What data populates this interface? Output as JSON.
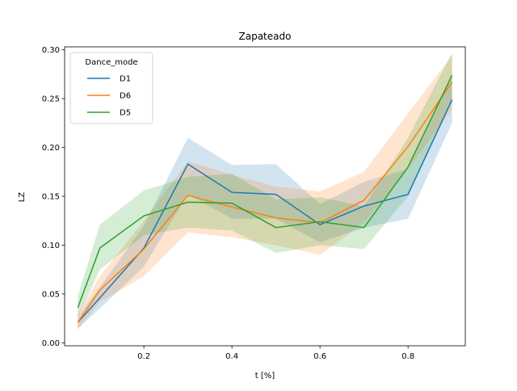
{
  "chart_data": {
    "type": "line",
    "title": "Zapateado",
    "xlabel": "t [%]",
    "ylabel": "LZ",
    "xlim": [
      0.02,
      0.93
    ],
    "ylim": [
      -0.003,
      0.303
    ],
    "x_ticks": [
      0.2,
      0.4,
      0.6,
      0.8
    ],
    "x_tick_labels": [
      "0.2",
      "0.4",
      "0.6",
      "0.8"
    ],
    "y_ticks": [
      0.0,
      0.05,
      0.1,
      0.15,
      0.2,
      0.25,
      0.3
    ],
    "y_tick_labels": [
      "0.00",
      "0.05",
      "0.10",
      "0.15",
      "0.20",
      "0.25",
      "0.30"
    ],
    "grid": false,
    "legend_title": "Dance_mode",
    "legend_position": "top-left",
    "x": [
      0.05,
      0.1,
      0.2,
      0.3,
      0.4,
      0.5,
      0.6,
      0.7,
      0.8,
      0.9
    ],
    "series": [
      {
        "name": "D1",
        "color": "#1f77b4",
        "values": [
          0.021,
          0.046,
          0.097,
          0.183,
          0.154,
          0.152,
          0.121,
          0.14,
          0.152,
          0.249
        ],
        "lower": [
          0.015,
          0.035,
          0.078,
          0.152,
          0.127,
          0.127,
          0.103,
          0.118,
          0.127,
          0.225
        ],
        "upper": [
          0.027,
          0.057,
          0.12,
          0.21,
          0.182,
          0.183,
          0.142,
          0.165,
          0.178,
          0.272
        ]
      },
      {
        "name": "D6",
        "color": "#ff7f0e",
        "values": [
          0.021,
          0.054,
          0.096,
          0.151,
          0.139,
          0.128,
          0.123,
          0.146,
          0.201,
          0.267
        ],
        "lower": [
          0.013,
          0.042,
          0.068,
          0.113,
          0.108,
          0.1,
          0.09,
          0.123,
          0.178,
          0.239
        ],
        "upper": [
          0.03,
          0.068,
          0.125,
          0.186,
          0.172,
          0.16,
          0.155,
          0.175,
          0.235,
          0.294
        ]
      },
      {
        "name": "D5",
        "color": "#2ca02c",
        "values": [
          0.036,
          0.097,
          0.13,
          0.144,
          0.143,
          0.118,
          0.124,
          0.118,
          0.18,
          0.274
        ],
        "lower": [
          0.026,
          0.075,
          0.11,
          0.118,
          0.115,
          0.092,
          0.1,
          0.096,
          0.15,
          0.25
        ],
        "upper": [
          0.048,
          0.121,
          0.156,
          0.17,
          0.173,
          0.147,
          0.149,
          0.14,
          0.21,
          0.297
        ]
      }
    ]
  }
}
